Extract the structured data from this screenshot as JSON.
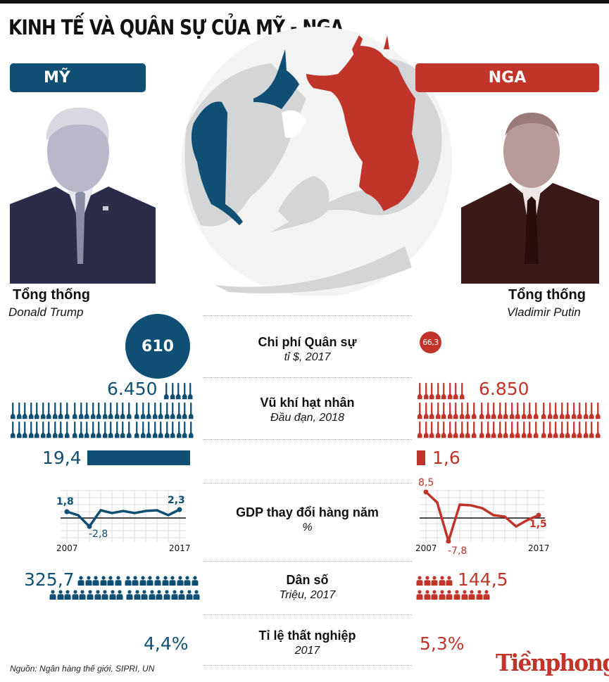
{
  "title": "KINH TẾ VÀ QUÂN SỰ CỦA MỸ - NGA",
  "colors": {
    "us": "#0e4f73",
    "russia": "#c0342a",
    "land": "#d4d5d7"
  },
  "countries": {
    "us": {
      "badge": "MỸ",
      "leader_title": "Tổng thống",
      "leader_name": "Donald Trump"
    },
    "russia": {
      "badge": "NGA",
      "leader_title": "Tổng thống",
      "leader_name": "Vladimir Putin"
    }
  },
  "map": {
    "icon": "globe-northern-hemisphere-map"
  },
  "metrics": [
    {
      "label": "Chi phí Quân sự",
      "sub": "tỉ $, 2017",
      "us": "610",
      "russia": "66,3"
    },
    {
      "label": "Vũ khí hạt nhân",
      "sub": "Đầu đạn, 2018",
      "us": "6.450",
      "russia": "6.850",
      "icon": "missile-icon"
    },
    {
      "label": "",
      "sub": "",
      "us": "19,4",
      "russia": "1,6"
    },
    {
      "label": "GDP thay đổi hàng năm",
      "sub": "%",
      "us_start": "1,8",
      "us_min": "-2,8",
      "us_end": "2,3",
      "russia_start": "8,5",
      "russia_min": "-7,8",
      "russia_end": "1,5",
      "year_start": "2007",
      "year_end": "2017"
    },
    {
      "label": "Dân số",
      "sub": "Triệu, 2017",
      "us": "325,7",
      "russia": "144,5",
      "icon": "person-icon"
    },
    {
      "label": "Tỉ lệ thất nghiệp",
      "sub": "2017",
      "us": "4,4%",
      "russia": "5,3%"
    }
  ],
  "chart_data": [
    {
      "type": "line",
      "title": "GDP thay đổi hàng năm - Mỹ",
      "ylabel": "%",
      "x": [
        2007,
        2008,
        2009,
        2010,
        2011,
        2012,
        2013,
        2014,
        2015,
        2016,
        2017
      ],
      "values": [
        1.8,
        -0.3,
        -2.8,
        2.5,
        1.6,
        2.2,
        1.7,
        2.6,
        2.9,
        1.5,
        2.3
      ],
      "labels": {
        "2007": "1,8",
        "2009": "-2,8",
        "2017": "2,3"
      }
    },
    {
      "type": "line",
      "title": "GDP thay đổi hàng năm - Nga",
      "ylabel": "%",
      "x": [
        2007,
        2008,
        2009,
        2010,
        2011,
        2012,
        2013,
        2014,
        2015,
        2016,
        2017
      ],
      "values": [
        8.5,
        5.2,
        -7.8,
        4.5,
        4.3,
        3.7,
        1.8,
        0.7,
        -2.8,
        -0.2,
        1.5
      ],
      "labels": {
        "2007": "8,5",
        "2009": "-7,8",
        "2017": "1,5"
      }
    }
  ],
  "footer": {
    "source": "Nguồn: Ngân hàng thế giới, SIPRI, UN",
    "logo": "Tiềnphong"
  }
}
